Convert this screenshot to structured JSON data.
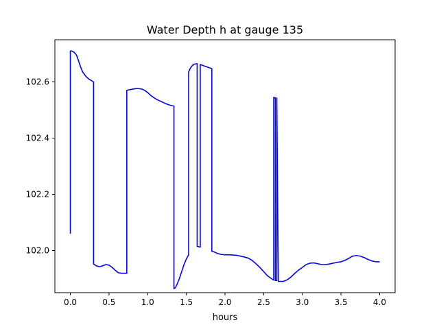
{
  "chart_data": {
    "type": "line",
    "title": "Water Depth h at gauge 135",
    "xlabel": "hours",
    "ylabel": "",
    "xlim": [
      -0.2,
      4.2
    ],
    "ylim": [
      101.85,
      102.75
    ],
    "x_ticks": [
      0.0,
      0.5,
      1.0,
      1.5,
      2.0,
      2.5,
      3.0,
      3.5,
      4.0
    ],
    "x_tick_labels": [
      "0.0",
      "0.5",
      "1.0",
      "1.5",
      "2.0",
      "2.5",
      "3.0",
      "3.5",
      "4.0"
    ],
    "y_ticks": [
      102.0,
      102.2,
      102.4,
      102.6
    ],
    "y_tick_labels": [
      "102.0",
      "102.2",
      "102.4",
      "102.6"
    ],
    "grid": false,
    "legend": "none",
    "series": [
      {
        "color": "#0000ff",
        "x": [
          0.0,
          0.0,
          0.02,
          0.05,
          0.08,
          0.1,
          0.13,
          0.16,
          0.2,
          0.24,
          0.3,
          0.3,
          0.34,
          0.38,
          0.42,
          0.46,
          0.5,
          0.54,
          0.58,
          0.62,
          0.66,
          0.7,
          0.73,
          0.73,
          0.76,
          0.8,
          0.84,
          0.88,
          0.92,
          0.96,
          1.0,
          1.04,
          1.08,
          1.12,
          1.16,
          1.2,
          1.24,
          1.28,
          1.32,
          1.34,
          1.34,
          1.36,
          1.38,
          1.41,
          1.44,
          1.47,
          1.5,
          1.53,
          1.53,
          1.55,
          1.57,
          1.6,
          1.64,
          1.64,
          1.68,
          1.68,
          1.72,
          1.76,
          1.8,
          1.83,
          1.83,
          1.86,
          1.9,
          1.95,
          2.0,
          2.05,
          2.1,
          2.15,
          2.2,
          2.25,
          2.3,
          2.35,
          2.4,
          2.45,
          2.5,
          2.55,
          2.6,
          2.63,
          2.63,
          2.65,
          2.65,
          2.67,
          2.67,
          2.69,
          2.75,
          2.8,
          2.85,
          2.9,
          2.95,
          3.0,
          3.05,
          3.1,
          3.15,
          3.2,
          3.25,
          3.3,
          3.35,
          3.4,
          3.45,
          3.5,
          3.55,
          3.6,
          3.65,
          3.7,
          3.75,
          3.8,
          3.85,
          3.9,
          3.95,
          4.0
        ],
        "y": [
          102.06,
          102.71,
          102.71,
          102.705,
          102.695,
          102.68,
          102.655,
          102.635,
          102.62,
          102.61,
          102.6,
          101.952,
          101.945,
          101.942,
          101.946,
          101.95,
          101.948,
          101.94,
          101.93,
          101.921,
          101.919,
          101.919,
          101.919,
          102.57,
          102.572,
          102.574,
          102.576,
          102.576,
          102.575,
          102.57,
          102.562,
          102.552,
          102.544,
          102.537,
          102.532,
          102.527,
          102.522,
          102.518,
          102.515,
          102.514,
          101.864,
          101.868,
          101.88,
          101.9,
          101.925,
          101.95,
          101.97,
          101.985,
          102.635,
          102.648,
          102.656,
          102.663,
          102.665,
          102.015,
          102.012,
          102.662,
          102.658,
          102.654,
          102.65,
          102.647,
          101.997,
          101.995,
          101.99,
          101.986,
          101.985,
          101.985,
          101.984,
          101.983,
          101.98,
          101.977,
          101.973,
          101.965,
          101.953,
          101.94,
          101.925,
          101.91,
          101.9,
          101.895,
          102.545,
          102.543,
          101.893,
          101.893,
          102.543,
          101.89,
          101.89,
          101.895,
          101.905,
          101.918,
          101.93,
          101.94,
          101.95,
          101.955,
          101.956,
          101.953,
          101.95,
          101.95,
          101.952,
          101.955,
          101.958,
          101.96,
          101.965,
          101.972,
          101.98,
          101.982,
          101.98,
          101.975,
          101.968,
          101.963,
          101.96,
          101.96
        ]
      }
    ]
  }
}
